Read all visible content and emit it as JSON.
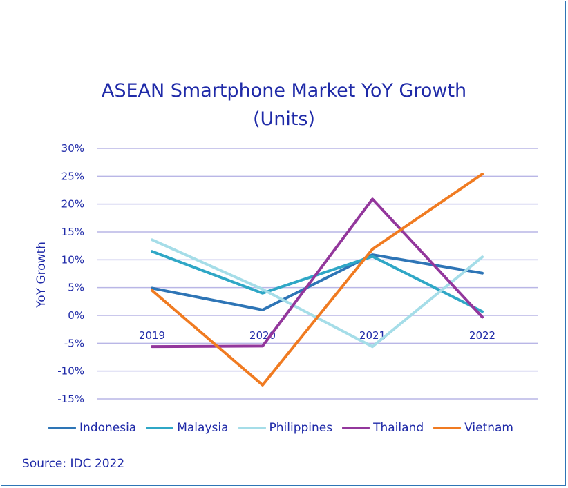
{
  "chart_data": {
    "type": "line",
    "title_line1": "ASEAN Smartphone Market YoY Growth",
    "title_line2": "(Units)",
    "ylabel": "YoY Growth",
    "xlabel": "",
    "categories": [
      "2019",
      "2020",
      "2021",
      "2022"
    ],
    "ylim": [
      -15,
      30
    ],
    "yticks": [
      "30%",
      "25%",
      "20%",
      "15%",
      "10%",
      "5%",
      "0%",
      "-5%",
      "-10%",
      "-15%"
    ],
    "ytick_values": [
      30,
      25,
      20,
      15,
      10,
      5,
      0,
      -5,
      -10,
      -15
    ],
    "grid": true,
    "legend_position": "bottom",
    "series": [
      {
        "name": "Indonesia",
        "color": "#2e75b6",
        "values": [
          4.9,
          1.0,
          10.9,
          7.6
        ]
      },
      {
        "name": "Malaysia",
        "color": "#2fa7c6",
        "values": [
          11.5,
          4.0,
          10.6,
          0.7
        ]
      },
      {
        "name": "Philippines",
        "color": "#a5dde8",
        "values": [
          13.6,
          4.7,
          -5.6,
          10.5
        ]
      },
      {
        "name": "Thailand",
        "color": "#93379c",
        "values": [
          -5.6,
          -5.5,
          20.9,
          -0.3
        ]
      },
      {
        "name": "Vietnam",
        "color": "#f07b21",
        "values": [
          4.5,
          -12.5,
          11.9,
          25.4
        ]
      }
    ]
  },
  "source": "Source: IDC 2022"
}
